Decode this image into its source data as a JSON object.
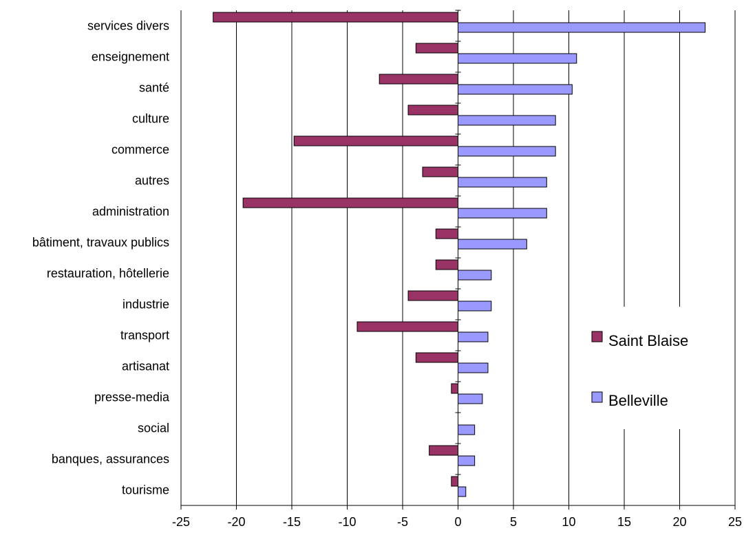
{
  "chart_data": {
    "type": "bar",
    "orientation": "horizontal",
    "categories": [
      "services divers",
      "enseignement",
      "santé",
      "culture",
      "commerce",
      "autres",
      "administration",
      "bâtiment, travaux publics",
      "restauration, hôtellerie",
      "industrie",
      "transport",
      "artisanat",
      "presse-media",
      "social",
      "banques, assurances",
      "tourisme"
    ],
    "series": [
      {
        "name": "Saint Blaise",
        "color": "#993366",
        "values": [
          -22.1,
          -3.8,
          -7.1,
          -4.5,
          -14.8,
          -3.2,
          -19.4,
          -2.0,
          -2.0,
          -4.5,
          -9.1,
          -3.8,
          -0.6,
          0,
          -2.6,
          -0.6
        ]
      },
      {
        "name": "Belleville",
        "color": "#9999ff",
        "values": [
          22.3,
          10.7,
          10.3,
          8.8,
          8.8,
          8.0,
          8.0,
          6.2,
          3.0,
          3.0,
          2.7,
          2.7,
          2.2,
          1.5,
          1.5,
          0.7
        ]
      }
    ],
    "xlim": [
      -25,
      25
    ],
    "xticks": [
      -25,
      -20,
      -15,
      -10,
      -5,
      0,
      5,
      10,
      15,
      20,
      25
    ],
    "grid": "vertical",
    "legend": "right",
    "title": "",
    "xlabel": "",
    "ylabel": ""
  }
}
